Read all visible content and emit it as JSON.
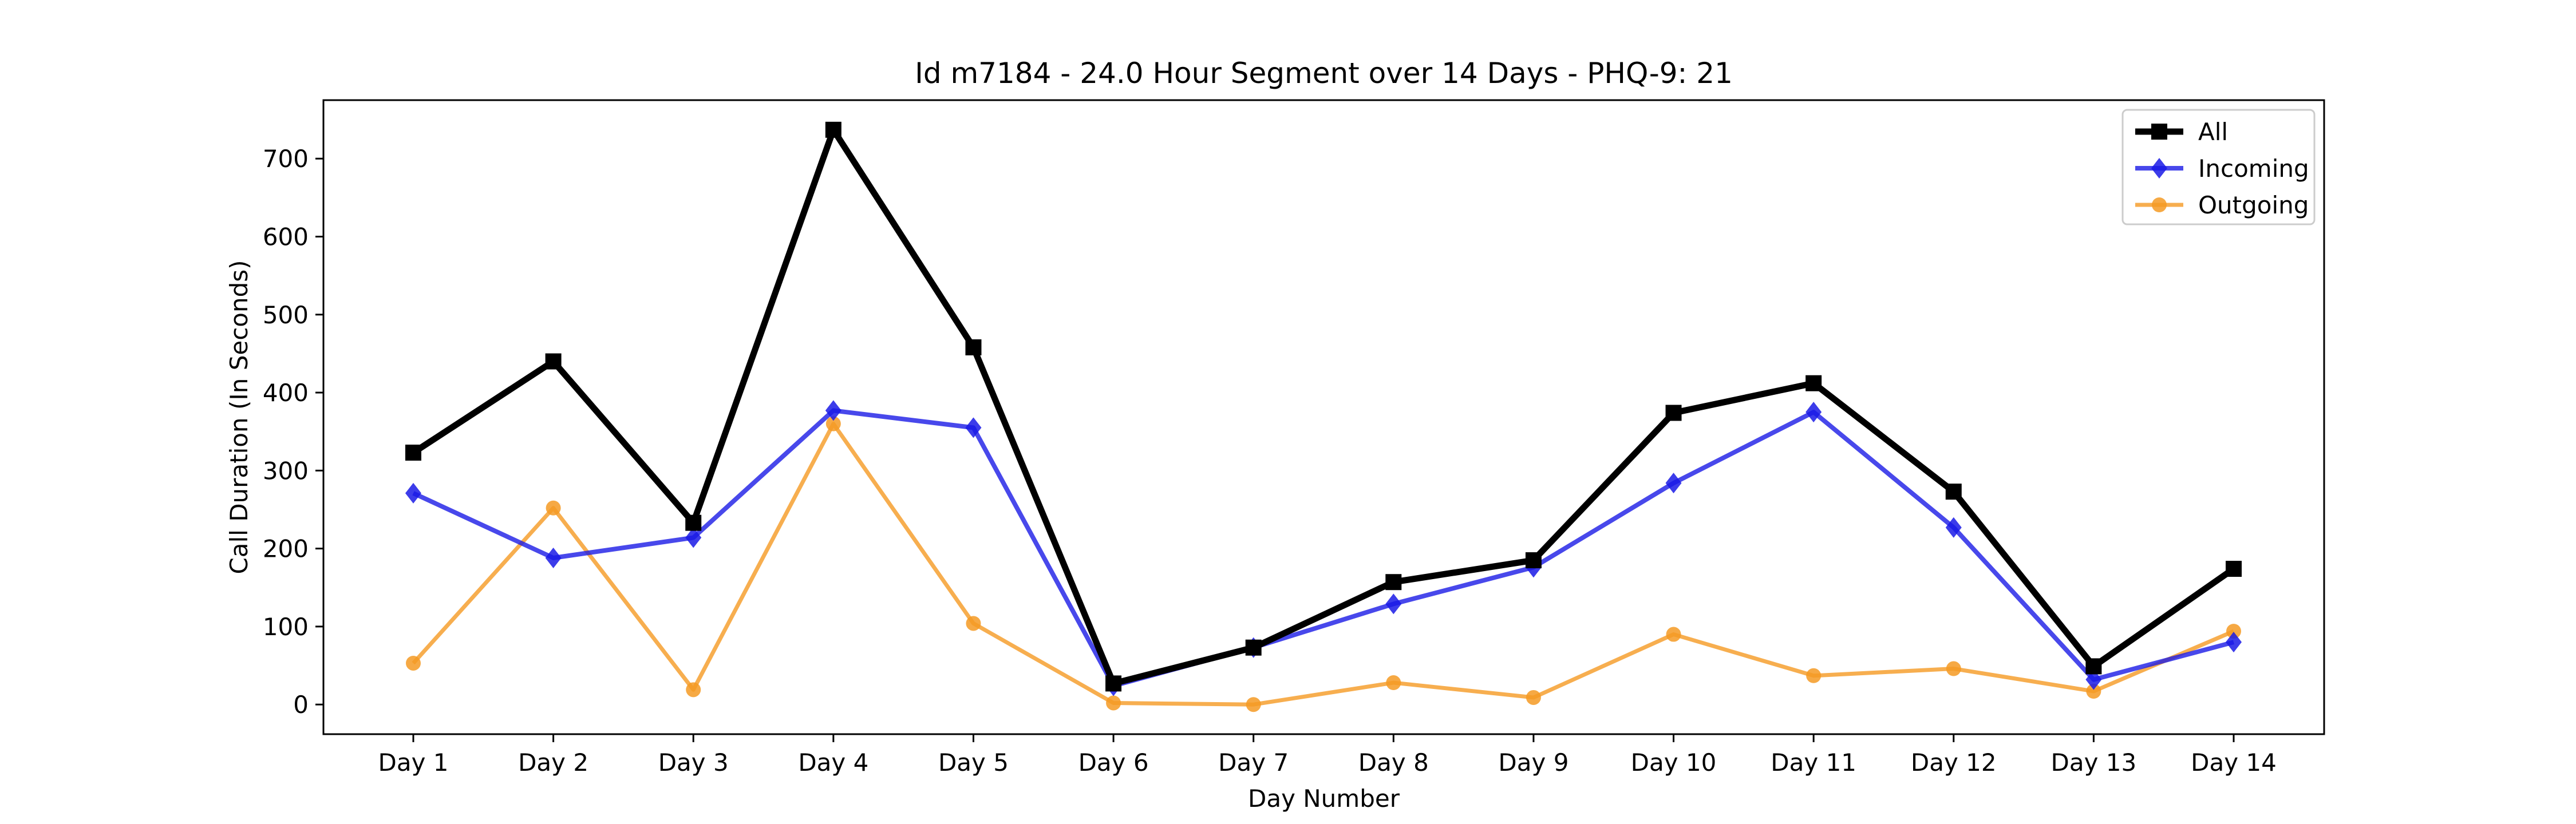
{
  "chart_data": {
    "type": "line",
    "title": "Id m7184 - 24.0 Hour Segment over 14 Days - PHQ-9: 21",
    "xlabel": "Day Number",
    "ylabel": "Call Duration (In Seconds)",
    "categories": [
      "Day 1",
      "Day 2",
      "Day 3",
      "Day 4",
      "Day 5",
      "Day 6",
      "Day 7",
      "Day 8",
      "Day 9",
      "Day 10",
      "Day 11",
      "Day 12",
      "Day 13",
      "Day 14"
    ],
    "ylim": [
      -38,
      775
    ],
    "yticks": [
      0,
      100,
      200,
      300,
      400,
      500,
      600,
      700
    ],
    "grid": false,
    "legend_position": "top-right",
    "series": [
      {
        "name": "All",
        "color": "#000000",
        "marker": "square",
        "values": [
          323,
          440,
          233,
          737,
          458,
          27,
          73,
          157,
          185,
          374,
          412,
          273,
          49,
          174
        ]
      },
      {
        "name": "Incoming",
        "color": "#1a1ae6",
        "marker": "diamond",
        "values": [
          271,
          188,
          214,
          377,
          355,
          24,
          73,
          129,
          176,
          284,
          375,
          227,
          32,
          80
        ]
      },
      {
        "name": "Outgoing",
        "color": "#f59a23",
        "marker": "circle",
        "values": [
          53,
          252,
          19,
          360,
          104,
          2,
          0,
          28,
          9,
          90,
          37,
          46,
          17,
          94
        ]
      }
    ]
  }
}
